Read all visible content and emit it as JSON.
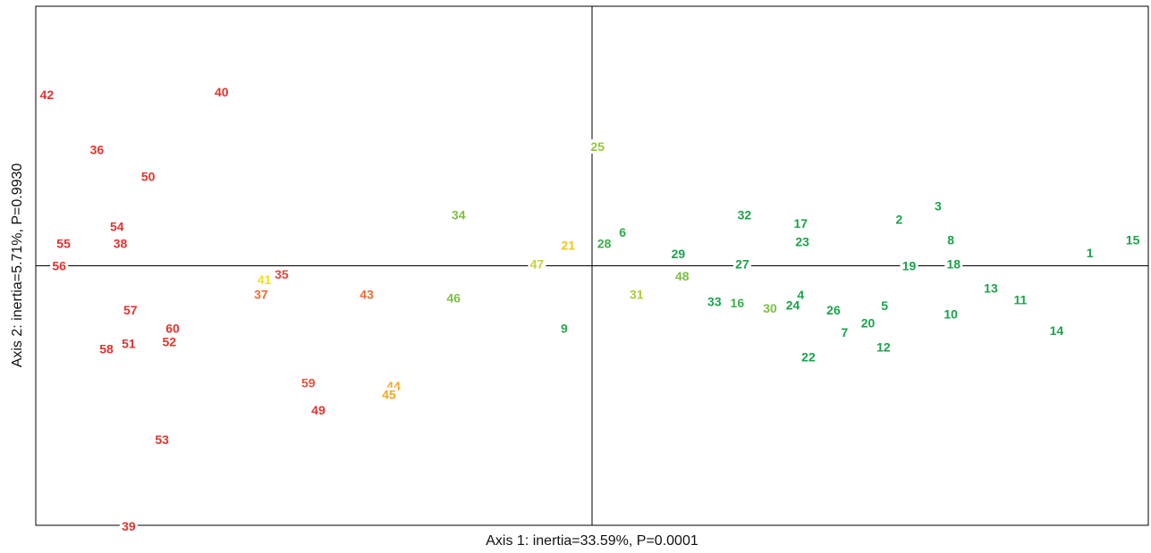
{
  "chart_data": {
    "type": "scatter",
    "xlabel": "Axis 1: inertia=33.59%, P=0.0001",
    "ylabel": "Axis 2: inertia=5.71%, P=0.9930",
    "xlim": [
      -1.0,
      1.0
    ],
    "ylim": [
      -0.55,
      0.55
    ],
    "grid": false,
    "reference_lines": {
      "x": 0,
      "y": 0
    },
    "points": [
      {
        "label": "1",
        "x": 0.895,
        "y": 0.027,
        "color": "#1aa34a"
      },
      {
        "label": "2",
        "x": 0.552,
        "y": 0.098,
        "color": "#1aa34a"
      },
      {
        "label": "3",
        "x": 0.622,
        "y": 0.127,
        "color": "#1aa34a"
      },
      {
        "label": "4",
        "x": 0.375,
        "y": -0.062,
        "color": "#1aa34a"
      },
      {
        "label": "5",
        "x": 0.526,
        "y": -0.084,
        "color": "#1aa34a"
      },
      {
        "label": "6",
        "x": 0.055,
        "y": 0.071,
        "color": "#2ba84a"
      },
      {
        "label": "7",
        "x": 0.454,
        "y": -0.141,
        "color": "#1aa34a"
      },
      {
        "label": "8",
        "x": 0.645,
        "y": 0.055,
        "color": "#1aa34a"
      },
      {
        "label": "9",
        "x": -0.05,
        "y": -0.133,
        "color": "#2ba84a"
      },
      {
        "label": "10",
        "x": 0.645,
        "y": -0.102,
        "color": "#1aa34a"
      },
      {
        "label": "11",
        "x": 0.77,
        "y": -0.072,
        "color": "#1aa34a"
      },
      {
        "label": "12",
        "x": 0.524,
        "y": -0.172,
        "color": "#1aa34a"
      },
      {
        "label": "13",
        "x": 0.717,
        "y": -0.047,
        "color": "#1aa34a"
      },
      {
        "label": "14",
        "x": 0.835,
        "y": -0.137,
        "color": "#1aa34a"
      },
      {
        "label": "15",
        "x": 0.972,
        "y": 0.055,
        "color": "#1aa34a"
      },
      {
        "label": "16",
        "x": 0.261,
        "y": -0.079,
        "color": "#3dae4c"
      },
      {
        "label": "17",
        "x": 0.375,
        "y": 0.09,
        "color": "#1aa34a"
      },
      {
        "label": "18",
        "x": 0.65,
        "y": 0.004,
        "color": "#1aa34a"
      },
      {
        "label": "19",
        "x": 0.57,
        "y": 0.0,
        "color": "#1aa34a"
      },
      {
        "label": "20",
        "x": 0.496,
        "y": -0.121,
        "color": "#1aa34a"
      },
      {
        "label": "21",
        "x": -0.043,
        "y": 0.044,
        "color": "#f2c61f"
      },
      {
        "label": "22",
        "x": 0.389,
        "y": -0.193,
        "color": "#1aa34a"
      },
      {
        "label": "23",
        "x": 0.378,
        "y": 0.051,
        "color": "#1aa34a"
      },
      {
        "label": "24",
        "x": 0.361,
        "y": -0.083,
        "color": "#1aa34a"
      },
      {
        "label": "25",
        "x": 0.01,
        "y": 0.253,
        "color": "#92c73e"
      },
      {
        "label": "26",
        "x": 0.434,
        "y": -0.094,
        "color": "#1aa34a"
      },
      {
        "label": "27",
        "x": 0.27,
        "y": 0.004,
        "color": "#1aa34a"
      },
      {
        "label": "28",
        "x": 0.022,
        "y": 0.047,
        "color": "#3dae4c"
      },
      {
        "label": "29",
        "x": 0.155,
        "y": 0.026,
        "color": "#1aa34a"
      },
      {
        "label": "30",
        "x": 0.32,
        "y": -0.09,
        "color": "#7bbf42"
      },
      {
        "label": "31",
        "x": 0.08,
        "y": -0.061,
        "color": "#a9cc3a"
      },
      {
        "label": "32",
        "x": 0.274,
        "y": 0.108,
        "color": "#1aa34a"
      },
      {
        "label": "33",
        "x": 0.22,
        "y": -0.076,
        "color": "#1aa34a"
      },
      {
        "label": "34",
        "x": -0.24,
        "y": 0.108,
        "color": "#7bbf42"
      },
      {
        "label": "35",
        "x": -0.558,
        "y": -0.018,
        "color": "#e8453a"
      },
      {
        "label": "36",
        "x": -0.89,
        "y": 0.246,
        "color": "#e2332f"
      },
      {
        "label": "37",
        "x": -0.595,
        "y": -0.061,
        "color": "#ec6a35"
      },
      {
        "label": "38",
        "x": -0.848,
        "y": 0.047,
        "color": "#e2332f"
      },
      {
        "label": "39",
        "x": -0.833,
        "y": -0.552,
        "color": "#e2332f"
      },
      {
        "label": "40",
        "x": -0.666,
        "y": 0.368,
        "color": "#e2332f"
      },
      {
        "label": "41",
        "x": -0.589,
        "y": -0.029,
        "color": "#f5dc1a"
      },
      {
        "label": "42",
        "x": -0.98,
        "y": 0.363,
        "color": "#e2332f"
      },
      {
        "label": "43",
        "x": -0.405,
        "y": -0.061,
        "color": "#ec6a35"
      },
      {
        "label": "44",
        "x": -0.357,
        "y": -0.255,
        "color": "#f5a623"
      },
      {
        "label": "45",
        "x": -0.365,
        "y": -0.273,
        "color": "#f5a623"
      },
      {
        "label": "46",
        "x": -0.249,
        "y": -0.068,
        "color": "#7bbf42"
      },
      {
        "label": "47",
        "x": -0.099,
        "y": 0.004,
        "color": "#c7d234"
      },
      {
        "label": "48",
        "x": 0.162,
        "y": -0.022,
        "color": "#7bbf42"
      },
      {
        "label": "49",
        "x": -0.492,
        "y": -0.306,
        "color": "#e2332f"
      },
      {
        "label": "50",
        "x": -0.798,
        "y": 0.189,
        "color": "#e2332f"
      },
      {
        "label": "51",
        "x": -0.833,
        "y": -0.165,
        "color": "#e2332f"
      },
      {
        "label": "52",
        "x": -0.76,
        "y": -0.161,
        "color": "#e2332f"
      },
      {
        "label": "53",
        "x": -0.773,
        "y": -0.368,
        "color": "#e2332f"
      },
      {
        "label": "54",
        "x": -0.854,
        "y": 0.083,
        "color": "#e2332f"
      },
      {
        "label": "55",
        "x": -0.95,
        "y": 0.047,
        "color": "#e2332f"
      },
      {
        "label": "56",
        "x": -0.958,
        "y": 0.0,
        "color": "#e2332f"
      },
      {
        "label": "57",
        "x": -0.83,
        "y": -0.094,
        "color": "#e2332f"
      },
      {
        "label": "58",
        "x": -0.873,
        "y": -0.176,
        "color": "#e2332f"
      },
      {
        "label": "59",
        "x": -0.51,
        "y": -0.248,
        "color": "#e8503a"
      },
      {
        "label": "60",
        "x": -0.754,
        "y": -0.133,
        "color": "#e2332f"
      }
    ]
  }
}
